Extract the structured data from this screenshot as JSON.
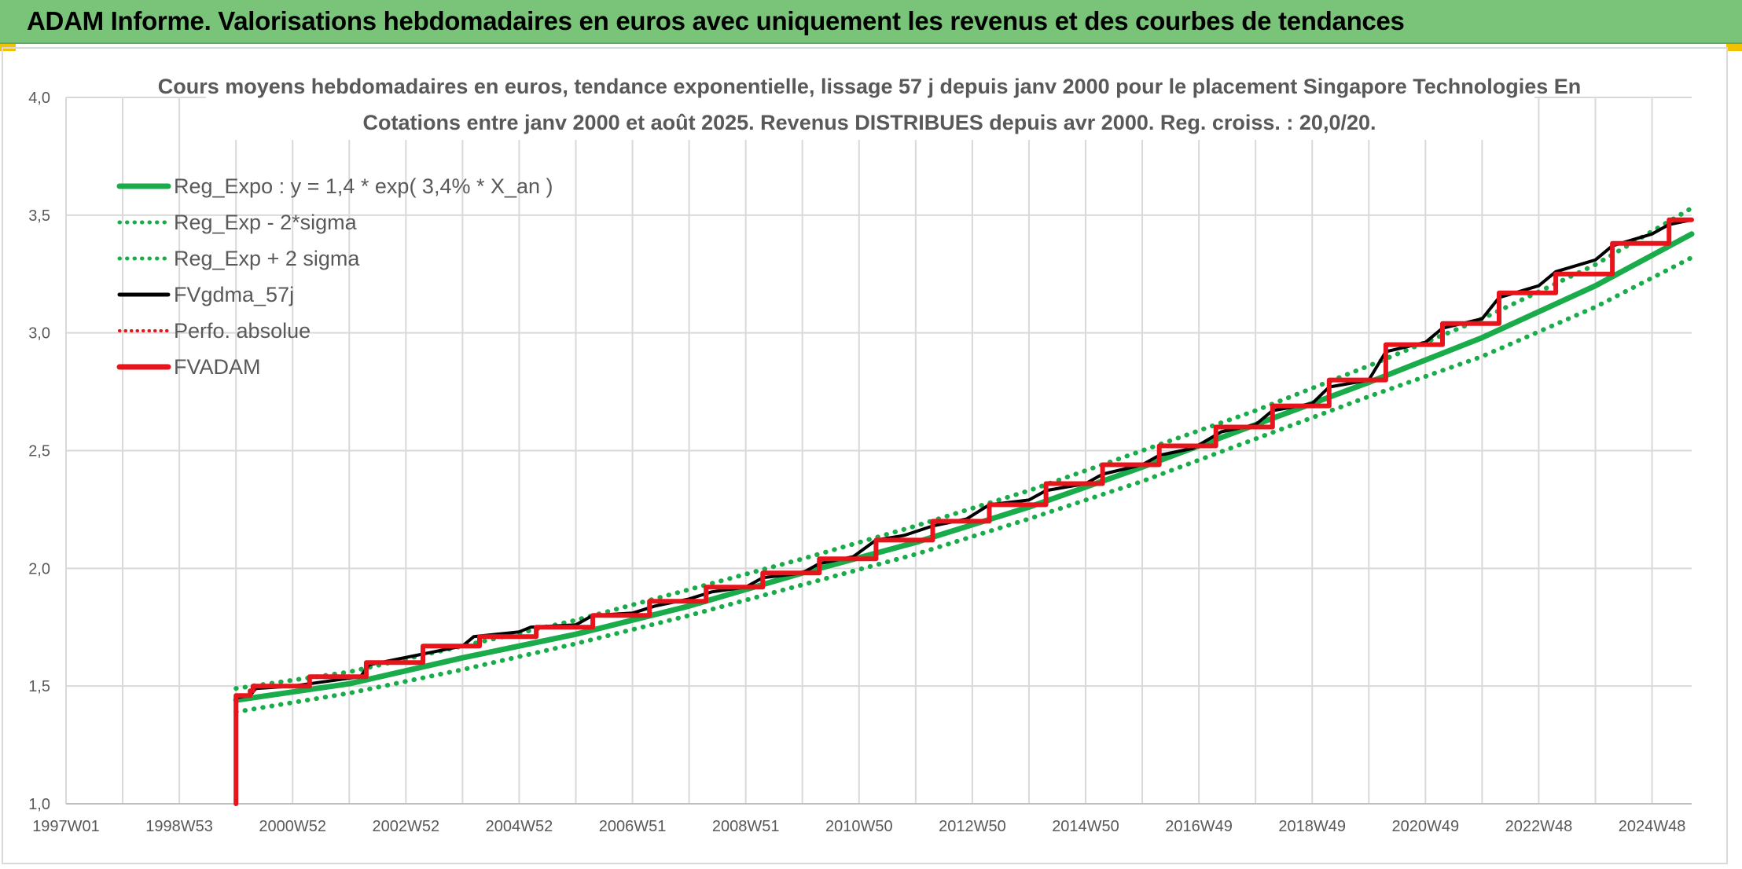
{
  "header": {
    "title": "ADAM Informe. Valorisations hebdomadaires en euros avec uniquement les revenus et des courbes de tendances"
  },
  "colors": {
    "header_bg": "#7ac47a",
    "reg_green": "#1aab4a",
    "fvgdma_black": "#000000",
    "fvadam_red": "#e8141c",
    "grid": "#d9d9d9",
    "accent_yellow": "#f2c200"
  },
  "chart_data": {
    "type": "line",
    "title_lines": [
      "Cours moyens hebdomadaires en euros, tendance exponentielle, lissage 57 j depuis janv 2000 pour le placement Singapore Technologies En",
      "Cotations entre janv 2000 et août 2025. Revenus DISTRIBUES depuis avr 2000. Reg. croiss. : 20,0/20."
    ],
    "x_tick_labels": [
      "1997W01",
      "1998W53",
      "2000W52",
      "2002W52",
      "2004W52",
      "2006W51",
      "2008W51",
      "2010W50",
      "2012W50",
      "2014W50",
      "2016W49",
      "2018W49",
      "2020W49",
      "2022W48",
      "2024W48"
    ],
    "x_tick_years": [
      1997.0,
      1999.0,
      2001.0,
      2003.0,
      2005.0,
      2007.0,
      2009.0,
      2011.0,
      2013.0,
      2015.0,
      2017.0,
      2019.0,
      2021.0,
      2023.0,
      2025.0
    ],
    "xlim": [
      1997.0,
      2025.7
    ],
    "ylim": [
      1.0,
      4.0
    ],
    "y_ticks": [
      "1,0",
      "1,5",
      "2,0",
      "2,5",
      "3,0",
      "3,5",
      "4,0"
    ],
    "y_tick_values": [
      1.0,
      1.5,
      2.0,
      2.5,
      3.0,
      3.5,
      4.0
    ],
    "grid": true,
    "legend_position": "top-left",
    "legend": [
      {
        "label": "Reg_Expo : y = 1,4 * exp( 3,4% *  X_an )",
        "style": "solid-thick",
        "color": "#1aab4a"
      },
      {
        "label": "Reg_Exp - 2*sigma",
        "style": "dotted",
        "color": "#1aab4a"
      },
      {
        "label": "Reg_Exp + 2 sigma",
        "style": "dotted",
        "color": "#1aab4a"
      },
      {
        "label": "FVgdma_57j",
        "style": "solid",
        "color": "#000000"
      },
      {
        "label": "Perfo. absolue",
        "style": "dotted",
        "color": "#e8141c"
      },
      {
        "label": "FVADAM",
        "style": "solid-thick",
        "color": "#e8141c"
      }
    ],
    "series": [
      {
        "name": "Reg_Expo : y = 1,4 * exp( 3,4% *  X_an )",
        "x": [
          2000.0,
          2002.0,
          2004.0,
          2006.0,
          2008.0,
          2010.0,
          2012.0,
          2014.0,
          2016.0,
          2018.0,
          2020.0,
          2022.0,
          2024.0,
          2025.7
        ],
        "y": [
          1.44,
          1.51,
          1.62,
          1.72,
          1.84,
          1.98,
          2.11,
          2.26,
          2.43,
          2.61,
          2.79,
          2.98,
          3.2,
          3.42
        ]
      },
      {
        "name": "Reg_Exp - 2*sigma",
        "x": [
          2000.0,
          2002.0,
          2004.0,
          2006.0,
          2008.0,
          2010.0,
          2012.0,
          2014.0,
          2016.0,
          2018.0,
          2020.0,
          2022.0,
          2024.0,
          2025.7
        ],
        "y": [
          1.39,
          1.47,
          1.57,
          1.68,
          1.8,
          1.93,
          2.06,
          2.21,
          2.37,
          2.55,
          2.73,
          2.9,
          3.11,
          3.32
        ]
      },
      {
        "name": "Reg_Exp + 2 sigma",
        "x": [
          2000.0,
          2002.0,
          2004.0,
          2006.0,
          2008.0,
          2010.0,
          2012.0,
          2014.0,
          2016.0,
          2018.0,
          2020.0,
          2022.0,
          2024.0,
          2025.7
        ],
        "y": [
          1.49,
          1.56,
          1.67,
          1.78,
          1.91,
          2.04,
          2.18,
          2.33,
          2.5,
          2.67,
          2.86,
          3.06,
          3.29,
          3.53
        ]
      },
      {
        "name": "FVgdma_57j",
        "x": [
          2000.0,
          2000.0,
          2000.25,
          2000.35,
          2001.0,
          2002.2,
          2002.35,
          2004.0,
          2004.2,
          2005.0,
          2005.2,
          2006.0,
          2006.3,
          2007.0,
          2007.4,
          2008.0,
          2008.4,
          2009.0,
          2009.3,
          2010.0,
          2010.3,
          2010.9,
          2011.3,
          2011.8,
          2012.3,
          2012.9,
          2013.3,
          2014.0,
          2014.3,
          2015.0,
          2015.3,
          2016.0,
          2016.3,
          2016.9,
          2017.4,
          2018.0,
          2018.3,
          2019.0,
          2019.3,
          2020.0,
          2020.3,
          2021.0,
          2021.3,
          2022.0,
          2022.3,
          2023.0,
          2023.3,
          2024.0,
          2024.3,
          2025.0,
          2025.3,
          2025.7
        ],
        "y": [
          1.0,
          1.45,
          1.46,
          1.49,
          1.5,
          1.54,
          1.59,
          1.67,
          1.71,
          1.73,
          1.75,
          1.76,
          1.8,
          1.81,
          1.84,
          1.87,
          1.9,
          1.92,
          1.96,
          1.98,
          2.02,
          2.05,
          2.12,
          2.14,
          2.18,
          2.21,
          2.27,
          2.29,
          2.33,
          2.36,
          2.4,
          2.44,
          2.48,
          2.51,
          2.58,
          2.61,
          2.67,
          2.7,
          2.77,
          2.8,
          2.92,
          2.96,
          3.02,
          3.06,
          3.15,
          3.2,
          3.26,
          3.31,
          3.37,
          3.42,
          3.46,
          3.48
        ]
      },
      {
        "name": "FVADAM",
        "x": [
          2000.0,
          2000.0,
          2000.25,
          2000.25,
          2000.3,
          2000.3,
          2001.3,
          2001.3,
          2002.3,
          2002.3,
          2003.3,
          2003.3,
          2004.3,
          2004.3,
          2005.3,
          2005.3,
          2006.3,
          2006.3,
          2007.3,
          2007.3,
          2008.3,
          2008.3,
          2009.3,
          2009.3,
          2010.3,
          2010.3,
          2011.3,
          2011.3,
          2012.3,
          2012.3,
          2013.3,
          2013.3,
          2014.3,
          2014.3,
          2015.3,
          2015.3,
          2016.3,
          2016.3,
          2017.3,
          2017.3,
          2018.3,
          2018.3,
          2019.3,
          2019.3,
          2020.3,
          2020.3,
          2021.3,
          2021.3,
          2022.3,
          2022.3,
          2023.3,
          2023.3,
          2024.3,
          2024.3,
          2025.3,
          2025.3,
          2025.7
        ],
        "y": [
          1.0,
          1.46,
          1.46,
          1.48,
          1.48,
          1.5,
          1.5,
          1.54,
          1.54,
          1.6,
          1.6,
          1.67,
          1.67,
          1.71,
          1.71,
          1.75,
          1.75,
          1.8,
          1.8,
          1.86,
          1.86,
          1.92,
          1.92,
          1.98,
          1.98,
          2.04,
          2.04,
          2.12,
          2.12,
          2.2,
          2.2,
          2.27,
          2.27,
          2.36,
          2.36,
          2.44,
          2.44,
          2.52,
          2.52,
          2.6,
          2.6,
          2.69,
          2.69,
          2.8,
          2.8,
          2.95,
          2.95,
          3.04,
          3.04,
          3.17,
          3.17,
          3.25,
          3.25,
          3.38,
          3.38,
          3.48,
          3.48
        ]
      }
    ]
  }
}
